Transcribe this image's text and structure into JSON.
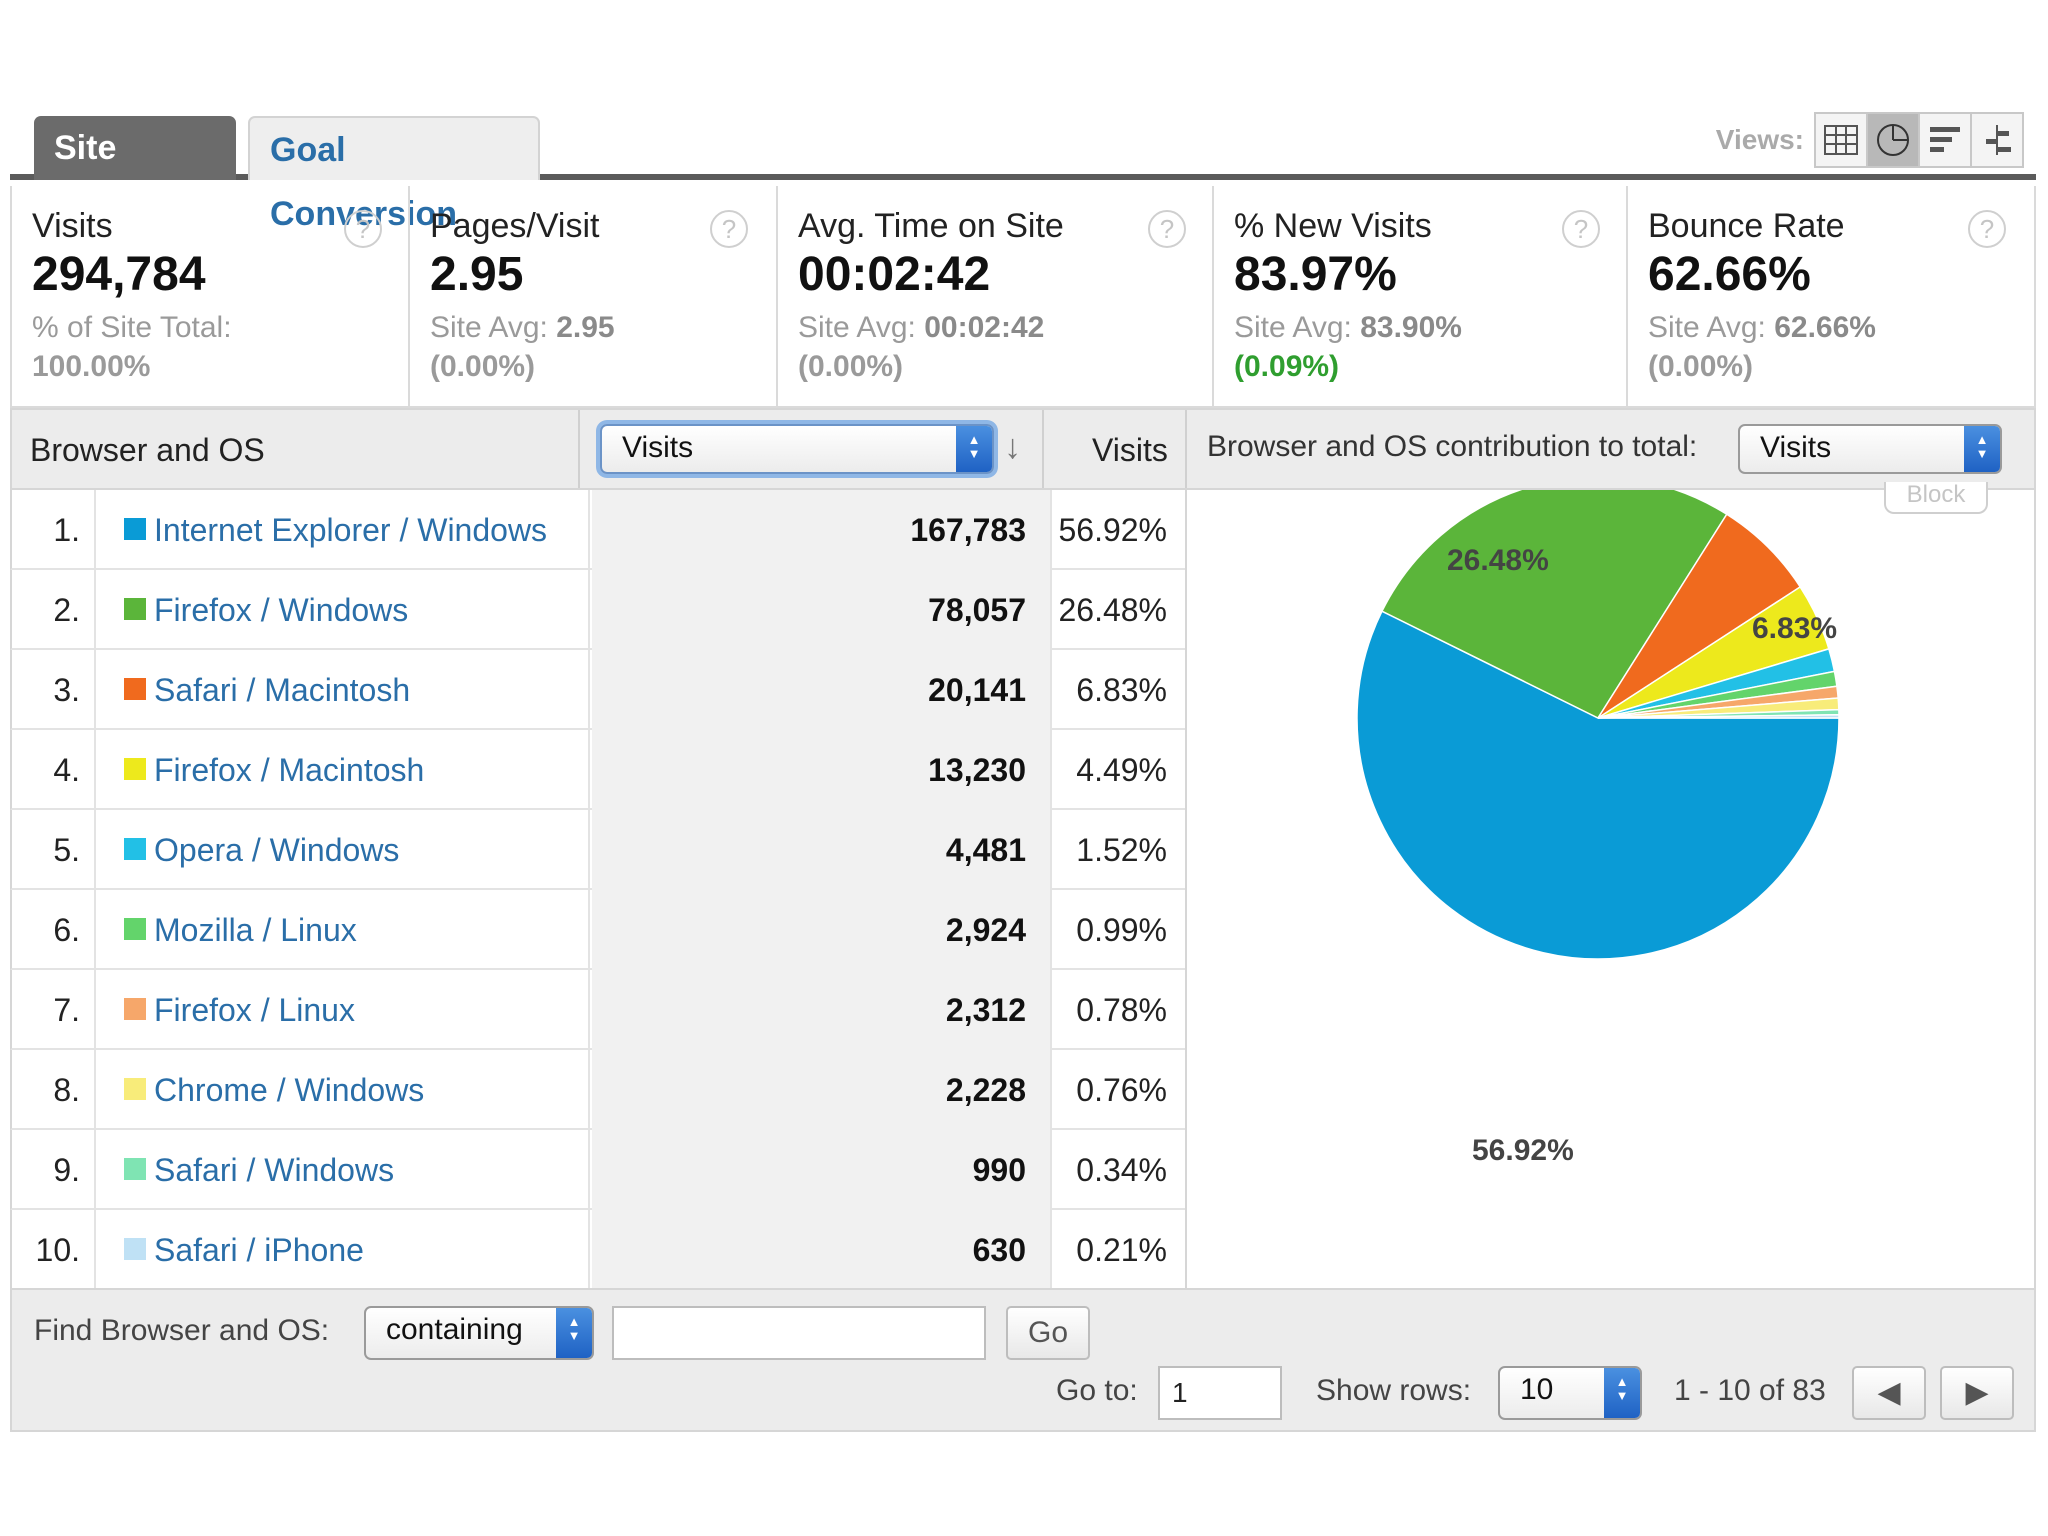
{
  "tabs": {
    "site_usage": "Site Usage",
    "goal_conversion": "Goal Conversion"
  },
  "views": {
    "label": "Views:",
    "active_view": "pie-chart",
    "icons": [
      "table-icon",
      "pie-chart-icon",
      "bar-chart-icon",
      "comparison-icon"
    ]
  },
  "scorecard": [
    {
      "label": "Visits",
      "value": "294,784",
      "sub_label": "% of Site Total:",
      "sub_value": "",
      "sub2": "100.00%",
      "sub2_color": "#9a9a9a"
    },
    {
      "label": "Pages/Visit",
      "value": "2.95",
      "sub_label": "Site Avg:",
      "sub_value": "2.95",
      "sub2": "(0.00%)",
      "sub2_color": "#9a9a9a"
    },
    {
      "label": "Avg. Time on Site",
      "value": "00:02:42",
      "sub_label": "Site Avg:",
      "sub_value": "00:02:42",
      "sub2": "(0.00%)",
      "sub2_color": "#9a9a9a"
    },
    {
      "label": "% New Visits",
      "value": "83.97%",
      "sub_label": "Site Avg:",
      "sub_value": "83.90%",
      "sub2": "(0.09%)",
      "sub2_color": "#2f9e2f"
    },
    {
      "label": "Bounce Rate",
      "value": "62.66%",
      "sub_label": "Site Avg:",
      "sub_value": "62.66%",
      "sub2": "(0.00%)",
      "sub2_color": "#9a9a9a"
    }
  ],
  "help_glyph": "?",
  "table": {
    "dimension_header": "Browser and OS",
    "metric_select": "Visits",
    "visits_header": "Visits",
    "contribution_label": "Browser and OS contribution to total:",
    "contribution_select": "Visits",
    "block_label": "Block",
    "rows": [
      {
        "num": "1.",
        "name": "Internet Explorer / Windows",
        "visits": "167,783",
        "pct": "56.92%",
        "color": "#0a9bd6"
      },
      {
        "num": "2.",
        "name": "Firefox / Windows",
        "visits": "78,057",
        "pct": "26.48%",
        "color": "#5bb53a"
      },
      {
        "num": "3.",
        "name": "Safari / Macintosh",
        "visits": "20,141",
        "pct": "6.83%",
        "color": "#f06a1e"
      },
      {
        "num": "4.",
        "name": "Firefox / Macintosh",
        "visits": "13,230",
        "pct": "4.49%",
        "color": "#ede91c"
      },
      {
        "num": "5.",
        "name": "Opera / Windows",
        "visits": "4,481",
        "pct": "1.52%",
        "color": "#22c0e6"
      },
      {
        "num": "6.",
        "name": "Mozilla / Linux",
        "visits": "2,924",
        "pct": "0.99%",
        "color": "#63d46b"
      },
      {
        "num": "7.",
        "name": "Firefox / Linux",
        "visits": "2,312",
        "pct": "0.78%",
        "color": "#f6a76a"
      },
      {
        "num": "8.",
        "name": "Chrome / Windows",
        "visits": "2,228",
        "pct": "0.76%",
        "color": "#f8ec7a"
      },
      {
        "num": "9.",
        "name": "Safari / Windows",
        "visits": "990",
        "pct": "0.34%",
        "color": "#7fe4b3"
      },
      {
        "num": "10.",
        "name": "Safari / iPhone",
        "visits": "630",
        "pct": "0.21%",
        "color": "#bfe1f5"
      }
    ]
  },
  "chart_data": {
    "type": "pie",
    "categories": [
      "Internet Explorer / Windows",
      "Firefox / Windows",
      "Safari / Macintosh",
      "Firefox / Macintosh",
      "Opera / Windows",
      "Mozilla / Linux",
      "Firefox / Linux",
      "Chrome / Windows",
      "Safari / Windows",
      "Safari / iPhone"
    ],
    "values": [
      56.92,
      26.48,
      6.83,
      4.49,
      1.52,
      0.99,
      0.78,
      0.76,
      0.34,
      0.21
    ],
    "colors": [
      "#0a9bd6",
      "#5bb53a",
      "#f06a1e",
      "#ede91c",
      "#22c0e6",
      "#63d46b",
      "#f6a76a",
      "#f8ec7a",
      "#7fe4b3",
      "#bfe1f5"
    ],
    "visible_labels": [
      "56.92%",
      "26.48%",
      "6.83%"
    ]
  },
  "footer": {
    "find_label": "Find Browser and OS:",
    "filter_mode": "containing",
    "search_value": "",
    "go_label": "Go",
    "goto_label": "Go to:",
    "goto_value": "1",
    "show_rows_label": "Show rows:",
    "show_rows_value": "10",
    "range_text": "1 - 10 of 83"
  }
}
